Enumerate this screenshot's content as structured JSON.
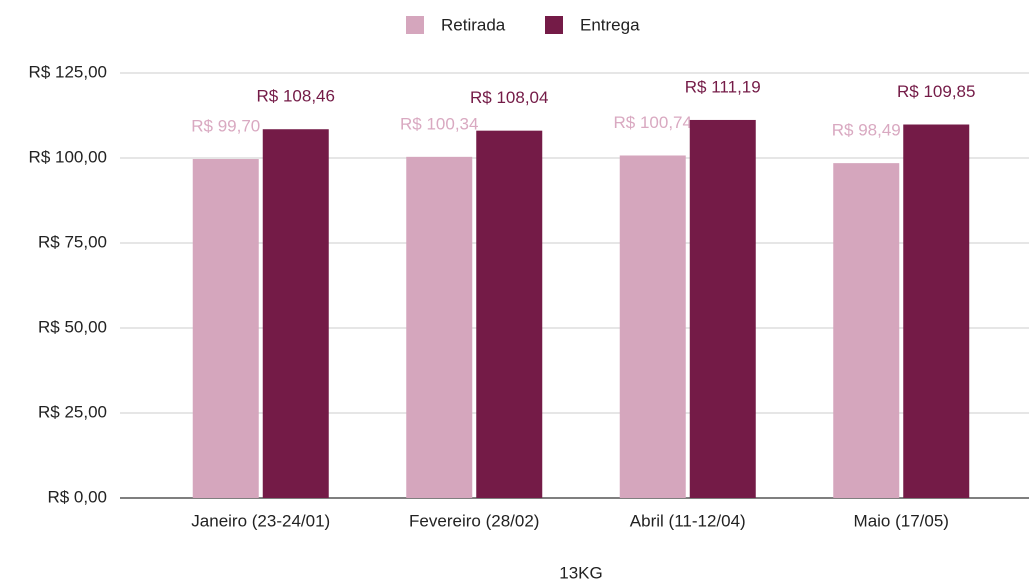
{
  "chart_data": {
    "type": "bar",
    "categories": [
      "Janeiro (23-24/01)",
      "Fevereiro (28/02)",
      "Abril (11-12/04)",
      "Maio (17/05)"
    ],
    "series": [
      {
        "name": "Retirada",
        "color": "#d5a6bd",
        "values": [
          99.7,
          100.34,
          100.74,
          98.49
        ],
        "value_labels": [
          "R$ 99,70",
          "R$ 100,34",
          "R$ 100,74",
          "R$ 98,49"
        ]
      },
      {
        "name": "Entrega",
        "color": "#741b47",
        "values": [
          108.46,
          108.04,
          111.19,
          109.85
        ],
        "value_labels": [
          "R$ 108,46",
          "R$ 108,04",
          "R$ 111,19",
          "R$ 109,85"
        ]
      }
    ],
    "x_label": "13KG",
    "ylim": [
      0,
      125
    ],
    "yticks": [
      {
        "value": 0,
        "label": "R$ 0,00"
      },
      {
        "value": 25,
        "label": "R$ 25,00"
      },
      {
        "value": 50,
        "label": "R$ 50,00"
      },
      {
        "value": 75,
        "label": "R$ 75,00"
      },
      {
        "value": 100,
        "label": "R$ 100,00"
      },
      {
        "value": 125,
        "label": "R$ 125,00"
      }
    ],
    "grid": true,
    "legend": "top"
  }
}
